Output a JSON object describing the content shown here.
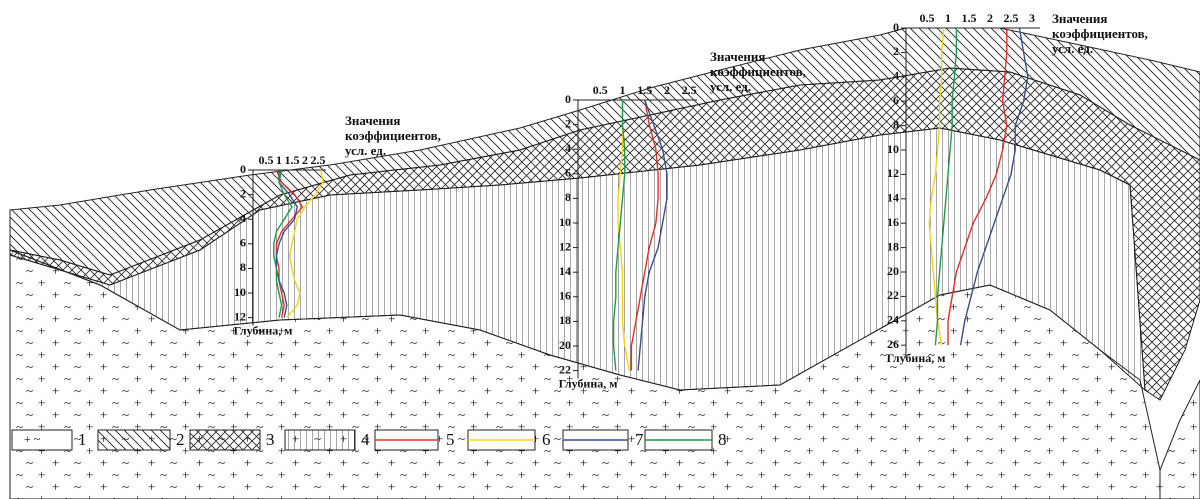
{
  "chart_data": [
    {
      "type": "line",
      "title": [
        "Значения",
        "коэффициентов,",
        "усл. ед."
      ],
      "ylabel": "Глубина, м",
      "xticks": [
        0.5,
        1,
        1.5,
        2,
        2.5
      ],
      "yticks": [
        0,
        2,
        4,
        6,
        8,
        10,
        12
      ],
      "ylim": [
        0,
        12
      ],
      "x": [
        0,
        1,
        2,
        3,
        4,
        5,
        6,
        7,
        8,
        9,
        10,
        11,
        12
      ],
      "series": [
        {
          "color": "#e0302b",
          "values": [
            0.9,
            1.1,
            1.6,
            1.9,
            1.5,
            1.1,
            0.9,
            0.9,
            1.0,
            1.0,
            1.1,
            1.2,
            1.1
          ]
        },
        {
          "color": "#f2d21b",
          "values": [
            2.6,
            2.7,
            2.4,
            2.0,
            1.7,
            1.6,
            1.5,
            1.4,
            1.5,
            1.6,
            1.8,
            1.7,
            1.3
          ]
        },
        {
          "color": "#3c4f86",
          "values": [
            1.0,
            1.0,
            1.4,
            1.7,
            1.6,
            1.2,
            1.0,
            0.9,
            0.9,
            1.0,
            1.2,
            1.3,
            1.2
          ]
        },
        {
          "color": "#1f9a4a",
          "values": [
            1.1,
            1.0,
            1.2,
            1.5,
            1.2,
            0.9,
            0.8,
            0.8,
            0.9,
            0.9,
            1.0,
            1.1,
            1.0
          ]
        }
      ]
    },
    {
      "type": "line",
      "title": [
        "Значения",
        "коэффициентов,",
        "усл. ед."
      ],
      "ylabel": "Глубина, м",
      "xticks": [
        0.5,
        1,
        1.5,
        2,
        2.5
      ],
      "yticks": [
        0,
        2,
        4,
        6,
        8,
        10,
        12,
        14,
        16,
        18,
        20,
        22
      ],
      "ylim": [
        0,
        22
      ],
      "x": [
        0,
        2,
        4,
        6,
        8,
        10,
        12,
        14,
        16,
        18,
        20,
        22
      ],
      "series": [
        {
          "color": "#e0302b",
          "values": [
            1.5,
            1.6,
            1.75,
            1.8,
            1.8,
            1.75,
            1.6,
            1.5,
            1.4,
            1.3,
            1.2,
            1.2
          ]
        },
        {
          "color": "#f2d21b",
          "values": [
            1.0,
            1.0,
            1.0,
            0.95,
            0.9,
            0.9,
            0.95,
            1.0,
            1.0,
            1.0,
            1.05,
            1.15
          ]
        },
        {
          "color": "#3c4f86",
          "values": [
            1.5,
            1.7,
            1.9,
            2.0,
            2.0,
            1.9,
            1.8,
            1.6,
            1.5,
            1.45,
            1.4,
            1.35
          ]
        },
        {
          "color": "#1f9a4a",
          "values": [
            1.0,
            1.0,
            1.05,
            1.05,
            1.0,
            0.95,
            0.9,
            0.85,
            0.85,
            0.8,
            0.8,
            0.85
          ]
        }
      ]
    },
    {
      "type": "line",
      "title": [
        "Значения",
        "коэффициентов,",
        "усл. ед."
      ],
      "ylabel": "Глубина, м",
      "xticks": [
        0.5,
        1,
        1.5,
        2,
        2.5,
        3
      ],
      "yticks": [
        0,
        2,
        4,
        6,
        8,
        10,
        12,
        14,
        16,
        18,
        20,
        22,
        24,
        26
      ],
      "ylim": [
        0,
        26
      ],
      "x": [
        0,
        2,
        4,
        6,
        8,
        10,
        12,
        14,
        16,
        18,
        20,
        22,
        24,
        26
      ],
      "series": [
        {
          "color": "#e0302b",
          "values": [
            2.4,
            2.4,
            2.35,
            2.3,
            2.4,
            2.3,
            2.15,
            1.9,
            1.6,
            1.4,
            1.2,
            1.1,
            1.0,
            1.0
          ]
        },
        {
          "color": "#f2d21b",
          "values": [
            0.9,
            0.85,
            0.85,
            0.8,
            0.8,
            0.75,
            0.7,
            0.6,
            0.55,
            0.6,
            0.65,
            0.7,
            0.75,
            0.85
          ]
        },
        {
          "color": "#3c4f86",
          "values": [
            2.7,
            2.8,
            2.9,
            2.8,
            2.6,
            2.6,
            2.5,
            2.3,
            2.1,
            1.9,
            1.7,
            1.55,
            1.4,
            1.3
          ]
        },
        {
          "color": "#1f9a4a",
          "values": [
            1.2,
            1.2,
            1.15,
            1.1,
            1.1,
            1.05,
            1.0,
            0.95,
            0.9,
            0.85,
            0.8,
            0.75,
            0.75,
            0.7
          ]
        }
      ]
    }
  ],
  "legend": [
    "1",
    "2",
    "3",
    "4",
    "5",
    "6",
    "7",
    "8"
  ]
}
